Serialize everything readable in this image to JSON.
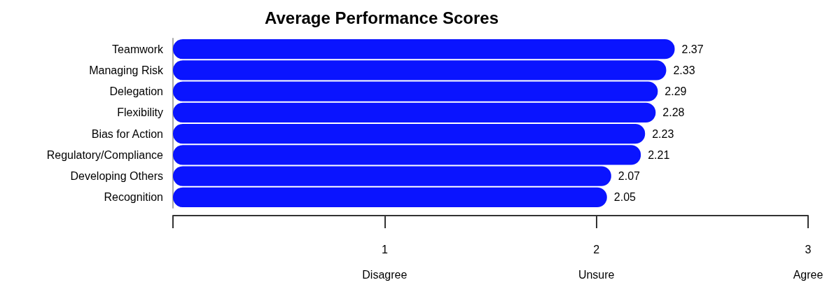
{
  "chart_data": {
    "type": "bar",
    "orientation": "horizontal",
    "title": "Average Performance Scores",
    "categories": [
      "Teamwork",
      "Managing Risk",
      "Delegation",
      "Flexibility",
      "Bias for Action",
      "Regulatory/Compliance",
      "Developing Others",
      "Recognition"
    ],
    "values": [
      2.37,
      2.33,
      2.29,
      2.28,
      2.23,
      2.21,
      2.07,
      2.05
    ],
    "color": "#0a14ff",
    "xlim": [
      0,
      3
    ],
    "xticks": [
      {
        "value": 0,
        "label": null
      },
      {
        "value": 1,
        "label": "1\nDisagree"
      },
      {
        "value": 2,
        "label": "2\nUnsure"
      },
      {
        "value": 3,
        "label": "3\nAgree"
      }
    ],
    "data_labels": true
  }
}
